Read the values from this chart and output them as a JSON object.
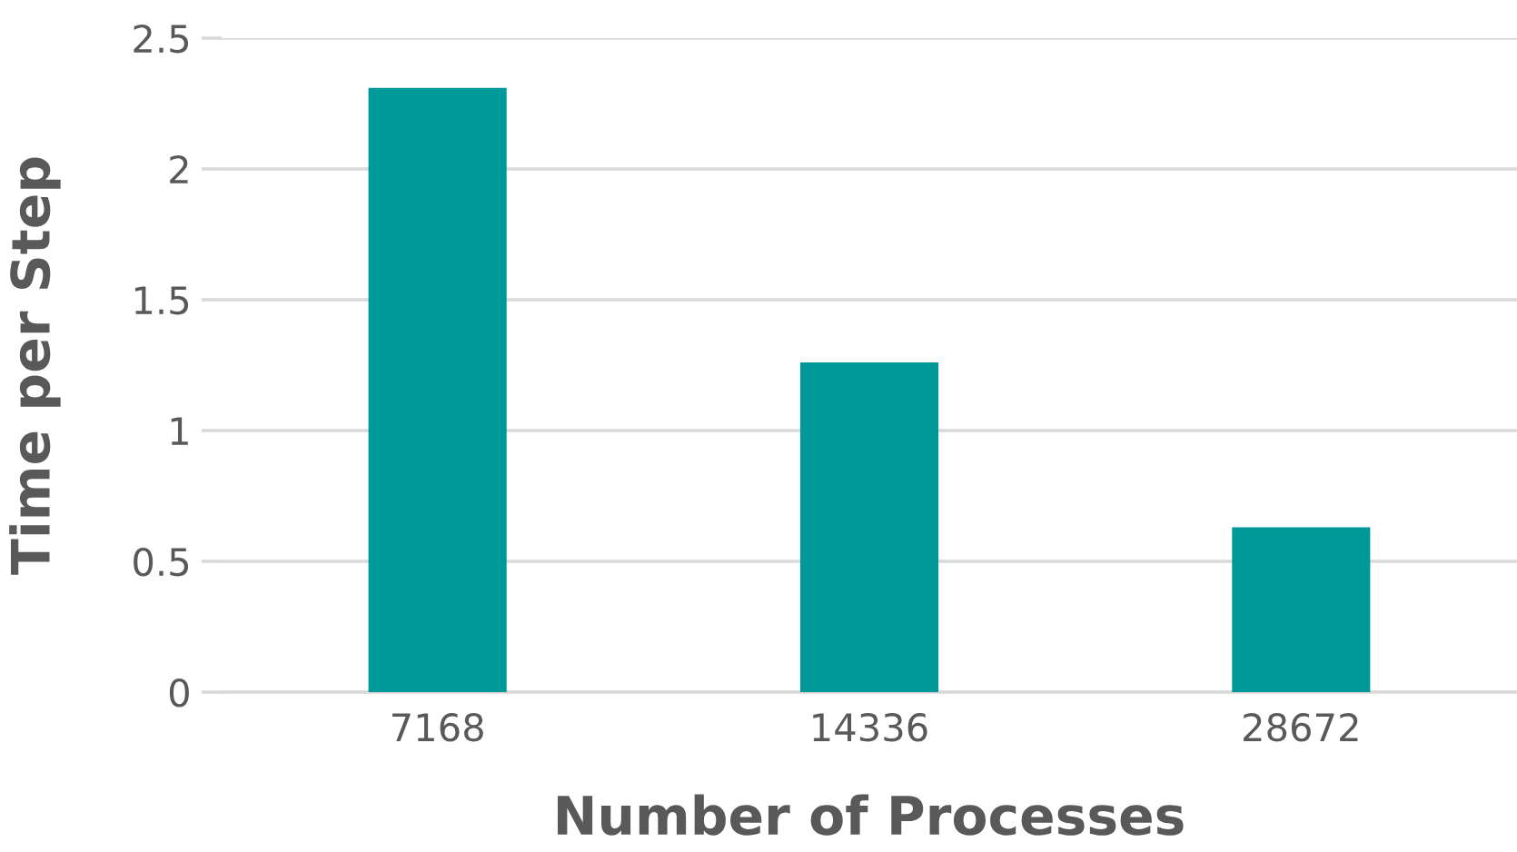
{
  "chart_data": {
    "type": "bar",
    "xlabel": "Number of Processes",
    "ylabel": "Time per Step",
    "categories": [
      "7168",
      "14336",
      "28672"
    ],
    "values": [
      2.31,
      1.26,
      0.63
    ],
    "color": "#009999",
    "ylim": [
      0,
      2.5
    ],
    "yticks": [
      0,
      0.5,
      1,
      1.5,
      2,
      2.5
    ],
    "grid": "y",
    "legend": false
  }
}
